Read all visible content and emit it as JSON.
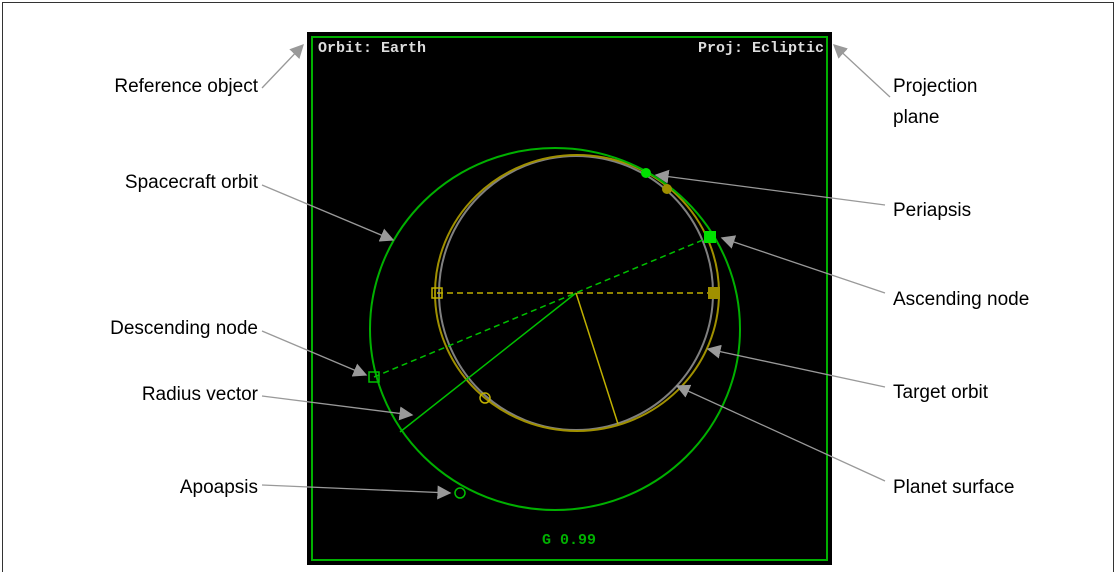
{
  "panel": {
    "reference": "Orbit: Earth",
    "projection": "Proj: Ecliptic",
    "status": "G 0.99"
  },
  "labels": {
    "reference_object": "Reference object",
    "projection_plane_1": "Projection",
    "projection_plane_2": "plane",
    "spacecraft_orbit": "Spacecraft orbit",
    "periapsis": "Periapsis",
    "ascending_node": "Ascending node",
    "descending_node": "Descending node",
    "target_orbit": "Target orbit",
    "radius_vector": "Radius vector",
    "apoapsis": "Apoapsis",
    "planet_surface": "Planet surface"
  }
}
